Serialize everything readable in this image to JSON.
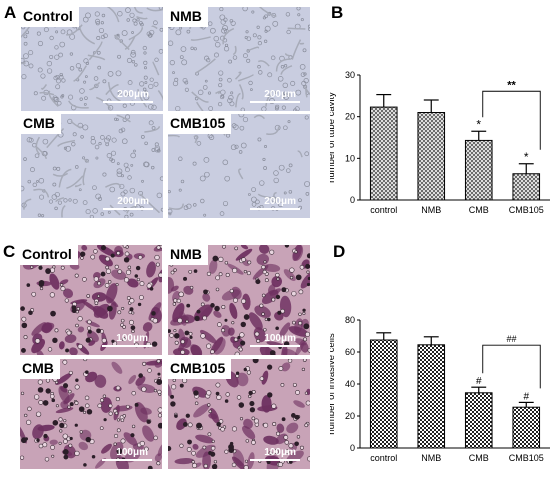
{
  "panels": {
    "A": "A",
    "B": "B",
    "C": "C",
    "D": "D"
  },
  "micrographs_A": [
    {
      "label": "Control",
      "scale": "200μm"
    },
    {
      "label": "NMB",
      "scale": "200μm"
    },
    {
      "label": "CMB",
      "scale": "200μm"
    },
    {
      "label": "CMB105",
      "scale": "200μm"
    }
  ],
  "micrographs_C": [
    {
      "label": "Control",
      "scale": "100μm"
    },
    {
      "label": "NMB",
      "scale": "100μm"
    },
    {
      "label": "CMB",
      "scale": "100μm"
    },
    {
      "label": "CMB105",
      "scale": "100μm"
    }
  ],
  "colors": {
    "tube_bg": "#c9cde0",
    "invasion_bg": "#c8a3b7",
    "invasion_stain": "#6e3060",
    "bar_fill": "#7a7a7a"
  },
  "chart_data": [
    {
      "id": "B",
      "type": "bar",
      "categories": [
        "control",
        "NMB",
        "CMB",
        "CMB105"
      ],
      "values": [
        22.3,
        21.0,
        14.3,
        6.3
      ],
      "errors": [
        3.0,
        3.0,
        2.2,
        2.4
      ],
      "ylabel": "number of tube cavity",
      "ylim": [
        0,
        30
      ],
      "yticks": [
        "0",
        "10",
        "20",
        "30"
      ],
      "annotations": {
        "CMB": "*",
        "CMB105": "*",
        "bracket": "**"
      },
      "pattern": "crosshatch"
    },
    {
      "id": "D",
      "type": "bar",
      "categories": [
        "control",
        "NMB",
        "CMB",
        "CMB105"
      ],
      "values": [
        67.5,
        64.5,
        34.5,
        25.5
      ],
      "errors": [
        4.5,
        5.0,
        3.5,
        3.0
      ],
      "ylabel": "number of invasive cells",
      "ylim": [
        0,
        80
      ],
      "yticks": [
        "0",
        "20",
        "40",
        "60",
        "80"
      ],
      "annotations": {
        "CMB": "#",
        "CMB105": "#",
        "bracket": "##"
      },
      "pattern": "checker"
    }
  ]
}
